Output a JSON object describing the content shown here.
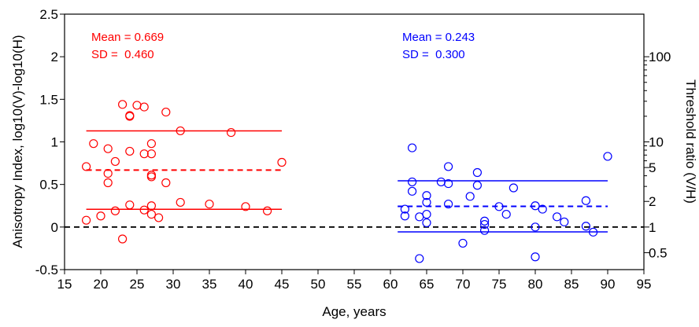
{
  "chart_data": {
    "type": "scatter",
    "xlabel": "Age, years",
    "ylabel": "Anisotropy Index, log10(V)-log10(H)",
    "y2label": "Threshold ratio (V/H)",
    "xlim": [
      15,
      95
    ],
    "ylim": [
      -0.5,
      2.5
    ],
    "xticks": [
      "15",
      "20",
      "25",
      "30",
      "35",
      "40",
      "45",
      "50",
      "55",
      "60",
      "65",
      "70",
      "75",
      "80",
      "85",
      "90",
      "95"
    ],
    "yticks": [
      "-0.5",
      "0",
      "0.5",
      "1",
      "1.5",
      "2",
      "2.5"
    ],
    "y2ticks": [
      {
        "label": "0.5",
        "value": 0.5
      },
      {
        "label": "1",
        "value": 1
      },
      {
        "label": "2",
        "value": 2
      },
      {
        "label": "5",
        "value": 5
      },
      {
        "label": "10",
        "value": 10
      },
      {
        "label": "100",
        "value": 100
      }
    ],
    "y2_minor_ticks": [
      3,
      4,
      6,
      7,
      8,
      9,
      20,
      30,
      40,
      50,
      60,
      70,
      80,
      90
    ],
    "y2_scale": "log",
    "grid": false,
    "reference_line": {
      "y": 0,
      "style": "dashed",
      "color": "#000000"
    },
    "series": [
      {
        "color": "#ff0000",
        "marker": "open-circle",
        "stats_text": {
          "mean": "Mean = 0.669",
          "sd": "SD =  0.460"
        },
        "mean_line": {
          "y": 0.669,
          "x_range": [
            18,
            45
          ],
          "style": "dashed"
        },
        "sd_lines": [
          {
            "y": 1.129,
            "x_range": [
              18,
              45
            ],
            "style": "solid"
          },
          {
            "y": 0.209,
            "x_range": [
              18,
              45
            ],
            "style": "solid"
          }
        ],
        "points": [
          {
            "x": 18,
            "y": 0.71
          },
          {
            "x": 18,
            "y": 0.08
          },
          {
            "x": 19,
            "y": 0.98
          },
          {
            "x": 20,
            "y": 0.13
          },
          {
            "x": 21,
            "y": 0.92
          },
          {
            "x": 21,
            "y": 0.63
          },
          {
            "x": 21,
            "y": 0.52
          },
          {
            "x": 22,
            "y": 0.77
          },
          {
            "x": 22,
            "y": 0.19
          },
          {
            "x": 23,
            "y": 1.44
          },
          {
            "x": 23,
            "y": -0.14
          },
          {
            "x": 24,
            "y": 1.31
          },
          {
            "x": 24,
            "y": 1.3
          },
          {
            "x": 24,
            "y": 0.89
          },
          {
            "x": 24,
            "y": 0.26
          },
          {
            "x": 25,
            "y": 1.43
          },
          {
            "x": 26,
            "y": 1.41
          },
          {
            "x": 26,
            "y": 0.86
          },
          {
            "x": 26,
            "y": 0.2
          },
          {
            "x": 27,
            "y": 0.98
          },
          {
            "x": 27,
            "y": 0.86
          },
          {
            "x": 27,
            "y": 0.61
          },
          {
            "x": 27,
            "y": 0.59
          },
          {
            "x": 27,
            "y": 0.25
          },
          {
            "x": 27,
            "y": 0.15
          },
          {
            "x": 28,
            "y": 0.11
          },
          {
            "x": 29,
            "y": 1.35
          },
          {
            "x": 29,
            "y": 0.52
          },
          {
            "x": 31,
            "y": 1.13
          },
          {
            "x": 31,
            "y": 0.29
          },
          {
            "x": 35,
            "y": 0.27
          },
          {
            "x": 38,
            "y": 1.11
          },
          {
            "x": 40,
            "y": 0.24
          },
          {
            "x": 43,
            "y": 0.19
          },
          {
            "x": 45,
            "y": 0.76
          }
        ]
      },
      {
        "color": "#0000ff",
        "marker": "open-circle",
        "stats_text": {
          "mean": "Mean = 0.243",
          "sd": "SD =  0.300"
        },
        "mean_line": {
          "y": 0.243,
          "x_range": [
            61,
            90
          ],
          "style": "dashed"
        },
        "sd_lines": [
          {
            "y": 0.543,
            "x_range": [
              61,
              90
            ],
            "style": "solid"
          },
          {
            "y": -0.057,
            "x_range": [
              61,
              90
            ],
            "style": "solid"
          }
        ],
        "points": [
          {
            "x": 62,
            "y": 0.21
          },
          {
            "x": 62,
            "y": 0.13
          },
          {
            "x": 63,
            "y": 0.93
          },
          {
            "x": 63,
            "y": 0.53
          },
          {
            "x": 63,
            "y": 0.42
          },
          {
            "x": 64,
            "y": 0.12
          },
          {
            "x": 64,
            "y": -0.37
          },
          {
            "x": 65,
            "y": 0.37
          },
          {
            "x": 65,
            "y": 0.29
          },
          {
            "x": 65,
            "y": 0.15
          },
          {
            "x": 65,
            "y": 0.05
          },
          {
            "x": 67,
            "y": 0.53
          },
          {
            "x": 68,
            "y": 0.71
          },
          {
            "x": 68,
            "y": 0.51
          },
          {
            "x": 68,
            "y": 0.27
          },
          {
            "x": 70,
            "y": -0.19
          },
          {
            "x": 71,
            "y": 0.36
          },
          {
            "x": 72,
            "y": 0.64
          },
          {
            "x": 72,
            "y": 0.49
          },
          {
            "x": 73,
            "y": 0.07
          },
          {
            "x": 73,
            "y": 0.03
          },
          {
            "x": 73,
            "y": -0.04
          },
          {
            "x": 75,
            "y": 0.24
          },
          {
            "x": 76,
            "y": 0.15
          },
          {
            "x": 77,
            "y": 0.46
          },
          {
            "x": 80,
            "y": 0.25
          },
          {
            "x": 80,
            "y": 0.0
          },
          {
            "x": 80,
            "y": -0.35
          },
          {
            "x": 81,
            "y": 0.21
          },
          {
            "x": 83,
            "y": 0.12
          },
          {
            "x": 84,
            "y": 0.06
          },
          {
            "x": 87,
            "y": 0.31
          },
          {
            "x": 87,
            "y": 0.01
          },
          {
            "x": 88,
            "y": -0.06
          },
          {
            "x": 90,
            "y": 0.83
          }
        ]
      }
    ]
  }
}
